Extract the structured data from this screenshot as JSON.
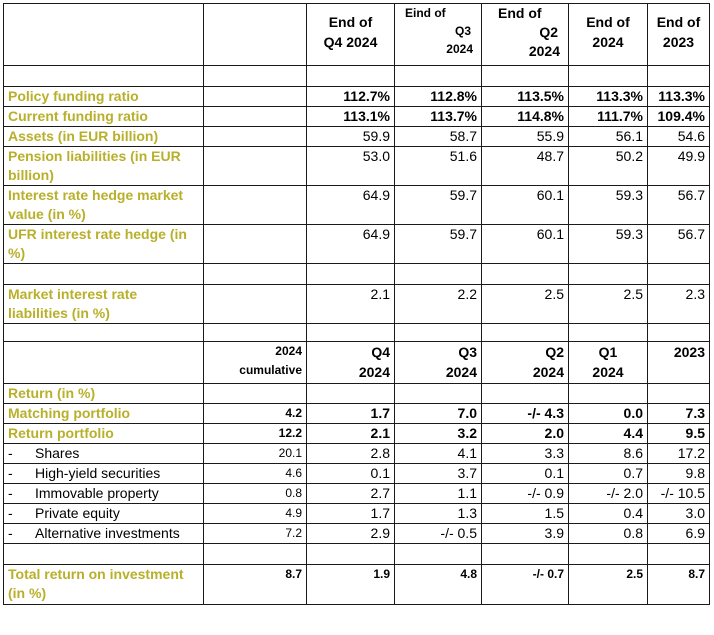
{
  "table": {
    "period_headers": [
      [
        "End of",
        "Q4 2024"
      ],
      [
        "Eind of",
        "Q3",
        "2024"
      ],
      [
        "End of",
        "Q2",
        "2024"
      ],
      [
        "End of",
        "2024"
      ],
      [
        "End of",
        "2023"
      ]
    ],
    "funding_rows": [
      {
        "label": "Policy funding ratio",
        "values": [
          "112.7%",
          "112.8%",
          "113.5%",
          "113.3%",
          "113.3%"
        ]
      },
      {
        "label": "Current funding ratio",
        "values": [
          "113.1%",
          "113.7%",
          "114.8%",
          "111.7%",
          "109.4%"
        ]
      },
      {
        "label": "Assets (in EUR billion)",
        "values": [
          "59.9",
          "58.7",
          "55.9",
          "56.1",
          "54.6"
        ]
      },
      {
        "label": "Pension liabilities (in EUR billion)",
        "values": [
          "53.0",
          "51.6",
          "48.7",
          "50.2",
          "49.9"
        ]
      },
      {
        "label": "Interest rate hedge market value (in %)",
        "values": [
          "64.9",
          "59.7",
          "60.1",
          "59.3",
          "56.7"
        ]
      },
      {
        "label": "UFR interest rate hedge (in %)",
        "values": [
          "64.9",
          "59.7",
          "60.1",
          "59.3",
          "56.7"
        ]
      }
    ],
    "market_row": {
      "label": "Market interest rate liabilities (in %)",
      "values": [
        "2.1",
        "2.2",
        "2.5",
        "2.5",
        "2.3"
      ]
    },
    "return_headers": {
      "cumulative": [
        "2024",
        "cumulative"
      ],
      "periods": [
        [
          "Q4",
          "2024"
        ],
        [
          "Q3",
          "2024"
        ],
        [
          "Q2",
          "2024"
        ],
        [
          "Q1",
          "2024"
        ],
        [
          "2023"
        ]
      ]
    },
    "return_title": "Return (in %)",
    "return_rows": [
      {
        "label": "Matching portfolio",
        "cumulative": "4.2",
        "values": [
          "1.7",
          "7.0",
          "-/- 4.3",
          "0.0",
          "7.3"
        ]
      },
      {
        "label": "Return portfolio",
        "cumulative": "12.2",
        "values": [
          "2.1",
          "3.2",
          "2.0",
          "4.4",
          "9.5"
        ]
      }
    ],
    "sub_rows": [
      {
        "dash": "-",
        "label": "Shares",
        "cumulative": "20.1",
        "values": [
          "2.8",
          "4.1",
          "3.3",
          "8.6",
          "17.2"
        ]
      },
      {
        "dash": "-",
        "label": "High-yield securities",
        "cumulative": "4.6",
        "values": [
          "0.1",
          "3.7",
          "0.1",
          "0.7",
          "9.8"
        ]
      },
      {
        "dash": "-",
        "label": "Immovable property",
        "cumulative": "0.8",
        "values": [
          "2.7",
          "1.1",
          "-/- 0.9",
          "-/- 2.0",
          "-/- 10.5"
        ]
      },
      {
        "dash": "-",
        "label": "Private equity",
        "cumulative": "4.9",
        "values": [
          "1.7",
          "1.3",
          "1.5",
          "0.4",
          "3.0"
        ]
      },
      {
        "dash": "-",
        "label": "Alternative investments",
        "cumulative": "7.2",
        "values": [
          "2.9",
          "-/- 0.5",
          "3.9",
          "0.8",
          "6.9"
        ]
      }
    ],
    "total_row": {
      "label": "Total return on investment (in %)",
      "cumulative": "8.7",
      "values": [
        "1.9",
        "4.8",
        "-/- 0.7",
        "2.5",
        "8.7"
      ]
    }
  }
}
